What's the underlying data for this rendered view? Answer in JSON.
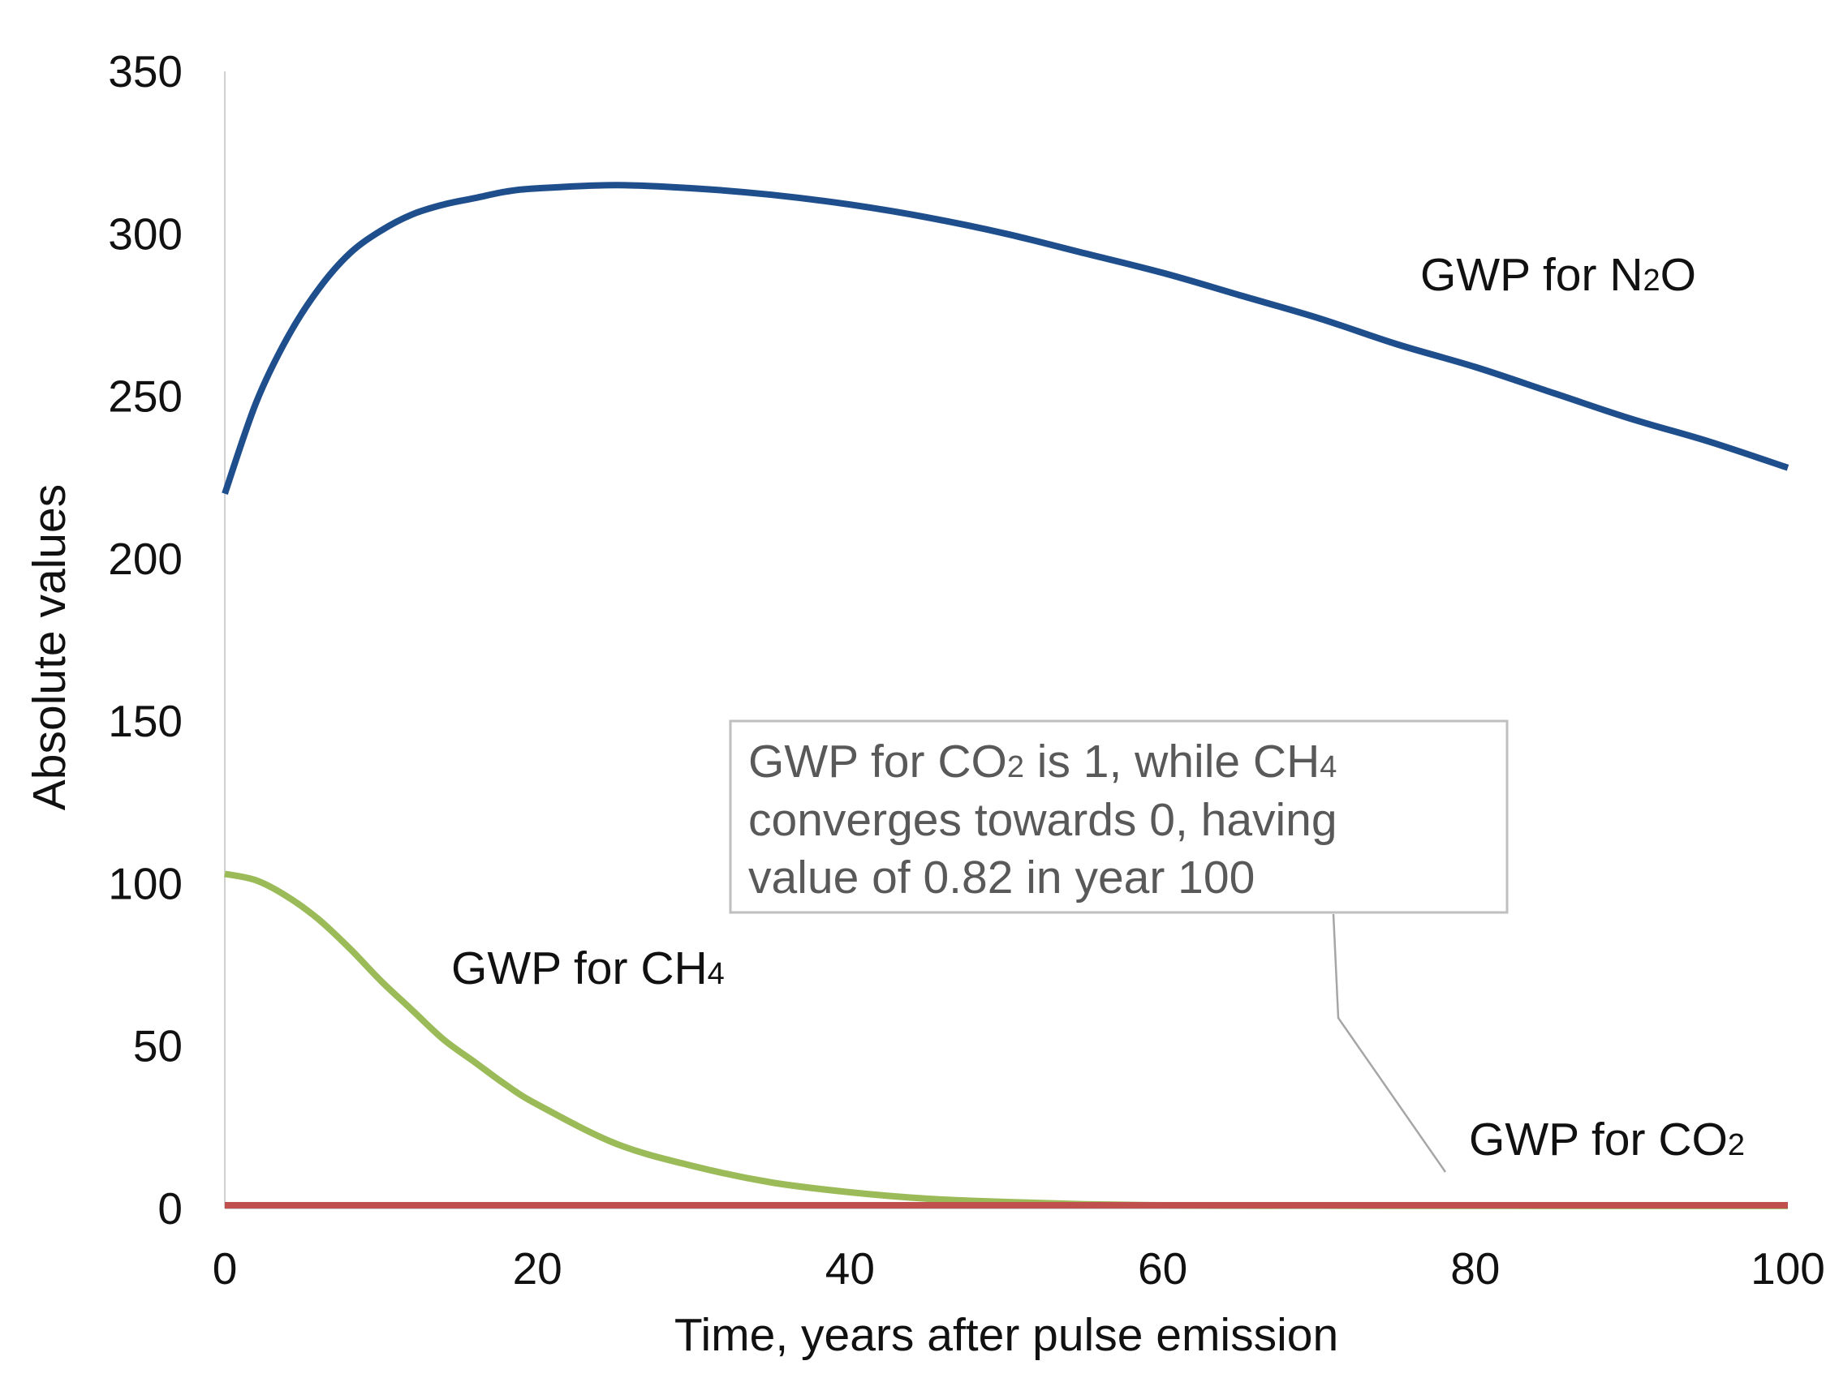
{
  "chart_data": {
    "type": "line",
    "title": "",
    "xlabel": "Time, years after pulse emission",
    "ylabel": "Absolute values",
    "xlim": [
      0,
      100
    ],
    "ylim": [
      0,
      350
    ],
    "x_ticks": [
      "0",
      "20",
      "40",
      "60",
      "80",
      "100"
    ],
    "y_ticks": [
      "0",
      "50",
      "100",
      "150",
      "200",
      "250",
      "300",
      "350"
    ],
    "grid": false,
    "legend": "none",
    "x": [
      0,
      2,
      4,
      6,
      8,
      10,
      12,
      14,
      16,
      18,
      20,
      25,
      30,
      35,
      40,
      45,
      50,
      55,
      60,
      65,
      70,
      75,
      80,
      85,
      90,
      95,
      100
    ],
    "series": [
      {
        "name": "GWP for N2O",
        "label_main": "GWP for N",
        "label_sub": "2",
        "label_tail": "O",
        "color": "#1F4E8C",
        "values": [
          220,
          248,
          268,
          283,
          294,
          301,
          306,
          309,
          311,
          313,
          314,
          315,
          314,
          312,
          309,
          305,
          300,
          294,
          288,
          281,
          274,
          266,
          259,
          251,
          243,
          236,
          228
        ]
      },
      {
        "name": "GWP for CH4",
        "label_main": "GWP for CH",
        "label_sub": "4",
        "label_tail": "",
        "color": "#9BBB59",
        "values": [
          103,
          101,
          96,
          89,
          80,
          70,
          61,
          52,
          45,
          38,
          32,
          20,
          13,
          8,
          5,
          3,
          2,
          1.3,
          1,
          0.9,
          0.9,
          0.85,
          0.85,
          0.83,
          0.83,
          0.82,
          0.82
        ]
      },
      {
        "name": "GWP for CO2",
        "label_main": "GWP for CO",
        "label_sub": "2",
        "label_tail": "",
        "color": "#C0504D",
        "values": [
          1,
          1,
          1,
          1,
          1,
          1,
          1,
          1,
          1,
          1,
          1,
          1,
          1,
          1,
          1,
          1,
          1,
          1,
          1,
          1,
          1,
          1,
          1,
          1,
          1,
          1,
          1
        ]
      }
    ],
    "annotation": {
      "line1_a": "GWP for CO",
      "line1_sub1": "2",
      "line1_b": " is 1, while CH",
      "line1_sub2": "4",
      "line2": "converges towards 0, having",
      "line3": "value of 0.82 in year 100"
    }
  }
}
